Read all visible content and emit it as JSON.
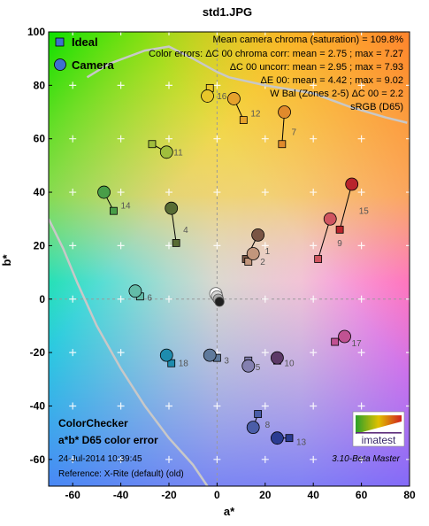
{
  "chart_data": {
    "type": "scatter",
    "title": "std1.JPG",
    "xlabel": "a*",
    "ylabel": "b*",
    "xlim": [
      -70,
      80
    ],
    "ylim": [
      -70,
      100
    ],
    "xticks": [
      -60,
      -40,
      -20,
      0,
      20,
      40,
      60,
      80
    ],
    "yticks": [
      -60,
      -40,
      -20,
      0,
      20,
      40,
      60,
      80,
      100
    ],
    "grid": true,
    "legend": {
      "position": "top-left",
      "entries": [
        "Ideal",
        "Camera"
      ]
    },
    "annotations": [
      "Mean camera chroma (saturation) = 109.8%",
      "Color errors: ΔC 00 chroma corr:  mean = 2.75 ;  max = 7.27",
      "ΔC 00 uncorr:  mean = 2.95 ;  max = 7.93",
      "ΔE 00:  mean = 4.42 ;  max = 9.02",
      "W Bal (Zones 2-5) ΔC 00 = 2.2",
      "sRGB (D65)"
    ],
    "footer_left": [
      "ColorChecker",
      "a*b* D65 color error",
      "24-Jul-2014 10:39:45",
      "Reference: X-Rite (default) (old)"
    ],
    "footer_right": "3.10-Beta  Master",
    "logo_text": "imatest",
    "gamut_boundary": [
      [
        -70,
        30
      ],
      [
        -64,
        19
      ],
      [
        -58,
        6
      ],
      [
        -50,
        -10
      ],
      [
        -40,
        -26
      ],
      [
        -30,
        -40
      ],
      [
        -20,
        -52
      ],
      [
        -10,
        -62
      ],
      [
        -4,
        -70
      ]
    ],
    "gamut_top": [
      [
        -54,
        83
      ],
      [
        -45,
        88
      ],
      [
        -30,
        93
      ],
      [
        -20,
        94.5
      ],
      [
        -10,
        90
      ],
      [
        0,
        85
      ],
      [
        5,
        83
      ],
      [
        20,
        80
      ],
      [
        40,
        77
      ],
      [
        55,
        72
      ],
      [
        70,
        68
      ],
      [
        79,
        66
      ]
    ],
    "gray_points": [
      [
        -0.5,
        2
      ],
      [
        0,
        1
      ],
      [
        0.5,
        0
      ],
      [
        1,
        -1
      ]
    ],
    "patches": [
      {
        "id": "1",
        "ideal": [
          12,
          15
        ],
        "camera": [
          17,
          24
        ],
        "color": "#7a5545"
      },
      {
        "id": "2",
        "ideal": [
          13,
          14
        ],
        "camera": [
          15,
          17
        ],
        "color": "#c2967c"
      },
      {
        "id": "3",
        "ideal": [
          0,
          -22
        ],
        "camera": [
          -3,
          -21
        ],
        "color": "#5f7a9c"
      },
      {
        "id": "4",
        "ideal": [
          -17,
          21
        ],
        "camera": [
          -19,
          34
        ],
        "color": "#586c34"
      },
      {
        "id": "5",
        "ideal": [
          13,
          -23
        ],
        "camera": [
          13,
          -25
        ],
        "color": "#8480b0"
      },
      {
        "id": "6",
        "ideal": [
          -32,
          1
        ],
        "camera": [
          -34,
          3
        ],
        "color": "#63bca8"
      },
      {
        "id": "7",
        "ideal": [
          27,
          58
        ],
        "camera": [
          28,
          70
        ],
        "color": "#e08a2c"
      },
      {
        "id": "8",
        "ideal": [
          17,
          -43
        ],
        "camera": [
          15,
          -48
        ],
        "color": "#4a5da8"
      },
      {
        "id": "9",
        "ideal": [
          42,
          15
        ],
        "camera": [
          47,
          30
        ],
        "color": "#cf5560"
      },
      {
        "id": "10",
        "ideal": [
          25,
          -23
        ],
        "camera": [
          25,
          -22
        ],
        "color": "#5d3968"
      },
      {
        "id": "11",
        "ideal": [
          -27,
          58
        ],
        "camera": [
          -21,
          55
        ],
        "color": "#a0be3c"
      },
      {
        "id": "12",
        "ideal": [
          11,
          67
        ],
        "camera": [
          7,
          75
        ],
        "color": "#e6a22c"
      },
      {
        "id": "13",
        "ideal": [
          30,
          -52
        ],
        "camera": [
          25,
          -52
        ],
        "color": "#2b3c92"
      },
      {
        "id": "14",
        "ideal": [
          -43,
          33
        ],
        "camera": [
          -47,
          40
        ],
        "color": "#489e48"
      },
      {
        "id": "15",
        "ideal": [
          51,
          26
        ],
        "camera": [
          56,
          43
        ],
        "color": "#b8242c"
      },
      {
        "id": "16",
        "ideal": [
          -3,
          79
        ],
        "camera": [
          -4,
          76
        ],
        "color": "#e8c62a"
      },
      {
        "id": "17",
        "ideal": [
          49,
          -16
        ],
        "camera": [
          53,
          -14
        ],
        "color": "#c05292"
      },
      {
        "id": "18",
        "ideal": [
          -19,
          -24
        ],
        "camera": [
          -21,
          -21
        ],
        "color": "#1e8cae"
      }
    ]
  }
}
